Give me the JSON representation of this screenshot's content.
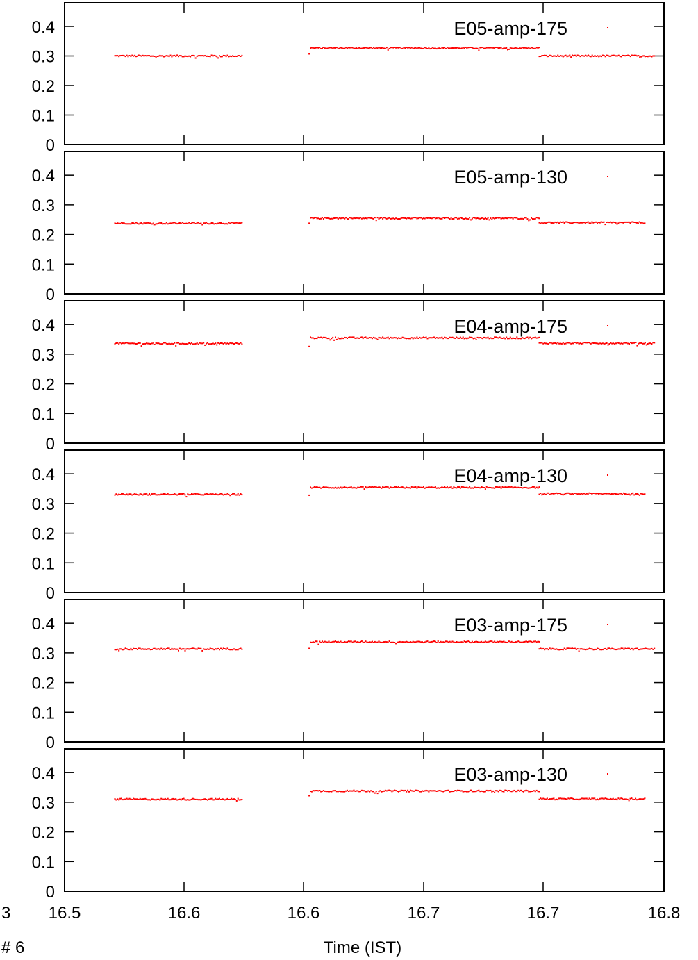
{
  "chart_data": {
    "type": "scatter",
    "xlabel": "Time (IST)",
    "x_tick_labels": [
      "16.5",
      "16.6",
      "16.6",
      "16.7",
      "16.7",
      "16.8"
    ],
    "y_tick_labels": [
      "0",
      "0.1",
      "0.2",
      "0.3",
      "0.4"
    ],
    "ylim": [
      0,
      0.48
    ],
    "xlim": [
      16.5,
      16.75
    ],
    "marker_color": "#ff0000",
    "edge_text_left": "3",
    "footer_left": "# 6",
    "panels": [
      {
        "name": "E05-amp-175",
        "segments": [
          {
            "x_start": 16.521,
            "x_end": 16.574,
            "level": 0.3,
            "first": null
          },
          {
            "x_start": 16.602,
            "x_end": 16.698,
            "level": 0.327,
            "first": 0.307
          },
          {
            "x_start": 16.698,
            "x_end": 16.746,
            "level": 0.3,
            "first": null
          }
        ]
      },
      {
        "name": "E05-amp-130",
        "segments": [
          {
            "x_start": 16.521,
            "x_end": 16.574,
            "level": 0.238,
            "first": null
          },
          {
            "x_start": 16.602,
            "x_end": 16.698,
            "level": 0.255,
            "first": 0.238
          },
          {
            "x_start": 16.698,
            "x_end": 16.742,
            "level": 0.24,
            "first": null
          }
        ]
      },
      {
        "name": "E04-amp-175",
        "segments": [
          {
            "x_start": 16.521,
            "x_end": 16.574,
            "level": 0.336,
            "first": null
          },
          {
            "x_start": 16.602,
            "x_end": 16.698,
            "level": 0.355,
            "first": 0.326
          },
          {
            "x_start": 16.698,
            "x_end": 16.746,
            "level": 0.337,
            "first": null
          }
        ]
      },
      {
        "name": "E04-amp-130",
        "segments": [
          {
            "x_start": 16.521,
            "x_end": 16.574,
            "level": 0.331,
            "first": null
          },
          {
            "x_start": 16.602,
            "x_end": 16.698,
            "level": 0.354,
            "first": 0.328
          },
          {
            "x_start": 16.698,
            "x_end": 16.742,
            "level": 0.333,
            "first": null
          }
        ]
      },
      {
        "name": "E03-amp-175",
        "segments": [
          {
            "x_start": 16.521,
            "x_end": 16.574,
            "level": 0.313,
            "first": null
          },
          {
            "x_start": 16.602,
            "x_end": 16.698,
            "level": 0.337,
            "first": 0.315
          },
          {
            "x_start": 16.698,
            "x_end": 16.746,
            "level": 0.313,
            "first": null
          }
        ]
      },
      {
        "name": "E03-amp-130",
        "segments": [
          {
            "x_start": 16.521,
            "x_end": 16.574,
            "level": 0.31,
            "first": null
          },
          {
            "x_start": 16.602,
            "x_end": 16.698,
            "level": 0.338,
            "first": 0.322
          },
          {
            "x_start": 16.698,
            "x_end": 16.742,
            "level": 0.311,
            "first": null
          }
        ]
      }
    ]
  }
}
